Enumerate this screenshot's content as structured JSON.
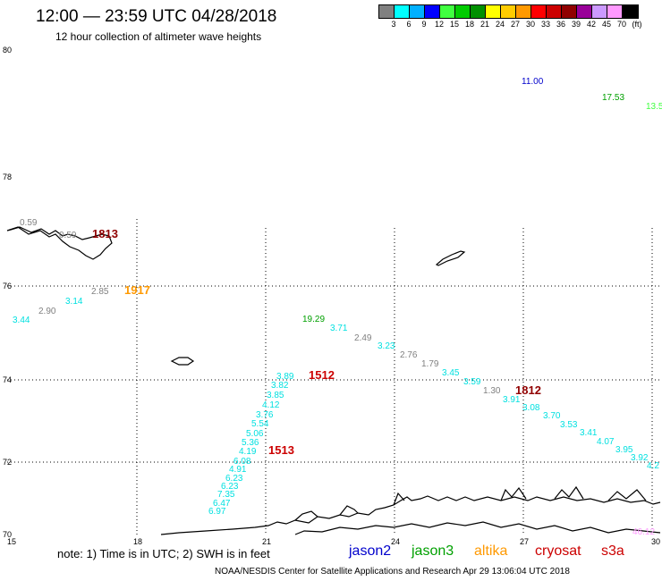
{
  "title": "12:00 — 23:59 UTC 04/28/2018",
  "subtitle": "12 hour collection of altimeter wave heights",
  "legend": {
    "colors": [
      "#808080",
      "#00ffff",
      "#00b0ff",
      "#0000ff",
      "#40ff40",
      "#00cc00",
      "#009000",
      "#ffff00",
      "#ffcc00",
      "#ff9900",
      "#ff0000",
      "#cc0000",
      "#900000",
      "#990099",
      "#cc99ff",
      "#ff99ff",
      "#000000"
    ],
    "ticks": [
      "3",
      "6",
      "9",
      "12",
      "15",
      "18",
      "21",
      "24",
      "27",
      "30",
      "33",
      "36",
      "39",
      "42",
      "45",
      "70",
      "(ft)"
    ]
  },
  "axes": {
    "y_labels": [
      "80",
      "78",
      "76",
      "74",
      "72",
      "70"
    ],
    "x_labels": [
      "15",
      "18",
      "21",
      "24",
      "27",
      "30"
    ]
  },
  "values": [
    {
      "t": "0.59",
      "c": "#808080"
    },
    {
      "t": "0.59",
      "c": "#808080"
    },
    {
      "t": "1813",
      "c": "#900000"
    },
    {
      "t": "2.85",
      "c": "#808080"
    },
    {
      "t": "1917",
      "c": "#ff9900"
    },
    {
      "t": "3.14",
      "c": "#00e0e0"
    },
    {
      "t": "2.90",
      "c": "#808080"
    },
    {
      "t": "3.44",
      "c": "#00e0e0"
    },
    {
      "t": "11.00",
      "c": "#0000cc"
    },
    {
      "t": "17.53",
      "c": "#00a000"
    },
    {
      "t": "13.5",
      "c": "#40ff40"
    },
    {
      "t": "19.29",
      "c": "#00a000"
    },
    {
      "t": "3.71",
      "c": "#00e0e0"
    },
    {
      "t": "2.49",
      "c": "#808080"
    },
    {
      "t": "3.23",
      "c": "#00e0e0"
    },
    {
      "t": "2.76",
      "c": "#808080"
    },
    {
      "t": "1.79",
      "c": "#808080"
    },
    {
      "t": "3.45",
      "c": "#00e0e0"
    },
    {
      "t": "3.59",
      "c": "#00e0e0"
    },
    {
      "t": "1.30",
      "c": "#808080"
    },
    {
      "t": "1812",
      "c": "#900000"
    },
    {
      "t": "3.91",
      "c": "#00e0e0"
    },
    {
      "t": "3.08",
      "c": "#00e0e0"
    },
    {
      "t": "3.70",
      "c": "#00e0e0"
    },
    {
      "t": "3.53",
      "c": "#00e0e0"
    },
    {
      "t": "3.41",
      "c": "#00e0e0"
    },
    {
      "t": "4.07",
      "c": "#00e0e0"
    },
    {
      "t": "3.95",
      "c": "#00e0e0"
    },
    {
      "t": "3.92",
      "c": "#00e0e0"
    },
    {
      "t": "4.2",
      "c": "#00e0e0"
    },
    {
      "t": "46.12",
      "c": "#ff99ff"
    },
    {
      "t": "3.89",
      "c": "#00e0e0"
    },
    {
      "t": "1512",
      "c": "#cc0000"
    },
    {
      "t": "3.82",
      "c": "#00e0e0"
    },
    {
      "t": "3.85",
      "c": "#00e0e0"
    },
    {
      "t": "4.12",
      "c": "#00e0e0"
    },
    {
      "t": "3.76",
      "c": "#00e0e0"
    },
    {
      "t": "5.54",
      "c": "#00e0e0"
    },
    {
      "t": "5.06",
      "c": "#00e0e0"
    },
    {
      "t": "5.36",
      "c": "#00e0e0"
    },
    {
      "t": "4.19",
      "c": "#00e0e0"
    },
    {
      "t": "1513",
      "c": "#cc0000"
    },
    {
      "t": "6.08",
      "c": "#00e0e0"
    },
    {
      "t": "4.91",
      "c": "#00e0e0"
    },
    {
      "t": "6.23",
      "c": "#00e0e0"
    },
    {
      "t": "6.23",
      "c": "#00e0e0"
    },
    {
      "t": "7.35",
      "c": "#00e0e0"
    },
    {
      "t": "6.47",
      "c": "#00e0e0"
    },
    {
      "t": "6.97",
      "c": "#00e0e0"
    }
  ],
  "footer": {
    "note": "note:  1) Time is in UTC;  2) SWH is in feet",
    "satellites": [
      {
        "name": "jason2",
        "color": "#0000cc"
      },
      {
        "name": "jason3",
        "color": "#00a000"
      },
      {
        "name": "altika",
        "color": "#ff9900"
      },
      {
        "name": "cryosat",
        "color": "#cc0000"
      },
      {
        "name": "s3a",
        "color": "#cc0000"
      }
    ],
    "credit": "NOAA/NESDIS Center for Satellite Applications and Research     Apr 29 13:06:04 UTC 2018"
  }
}
